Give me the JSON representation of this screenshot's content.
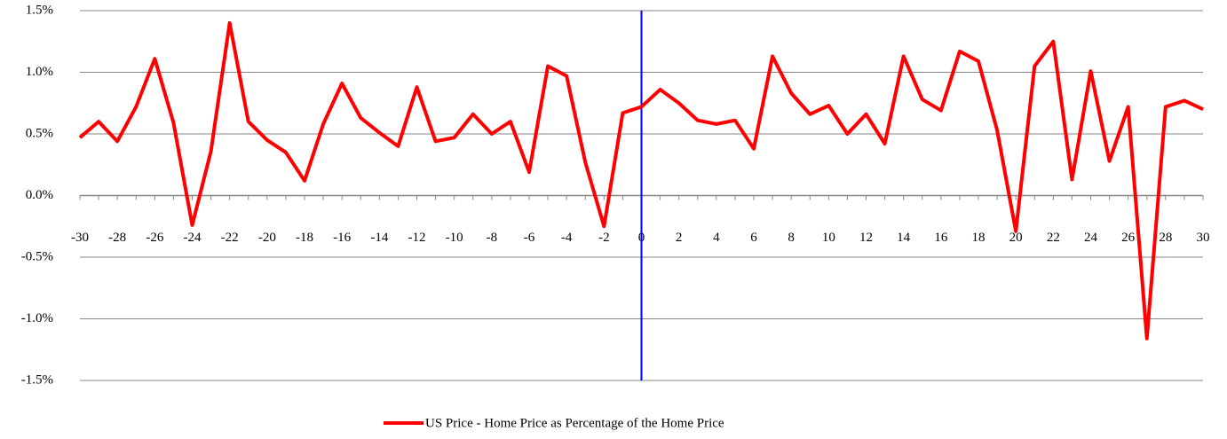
{
  "chart_data": {
    "type": "line",
    "x": [
      -30,
      -29,
      -28,
      -27,
      -26,
      -25,
      -24,
      -23,
      -22,
      -21,
      -20,
      -19,
      -18,
      -17,
      -16,
      -15,
      -14,
      -13,
      -12,
      -11,
      -10,
      -9,
      -8,
      -7,
      -6,
      -5,
      -4,
      -3,
      -2,
      -1,
      0,
      1,
      2,
      3,
      4,
      5,
      6,
      7,
      8,
      9,
      10,
      11,
      12,
      13,
      14,
      15,
      16,
      17,
      18,
      19,
      20,
      21,
      22,
      23,
      24,
      25,
      26,
      27,
      28,
      29,
      30
    ],
    "series": [
      {
        "name": "US Price - Home Price as Percentage of the Home Price",
        "color": "#ff0000",
        "values": [
          0.47,
          0.6,
          0.44,
          0.72,
          1.11,
          0.59,
          -0.24,
          0.36,
          1.4,
          0.6,
          0.45,
          0.35,
          0.12,
          0.58,
          0.91,
          0.63,
          0.51,
          0.4,
          0.88,
          0.44,
          0.47,
          0.66,
          0.5,
          0.6,
          0.19,
          1.05,
          0.97,
          0.27,
          -0.25,
          0.67,
          0.72,
          0.86,
          0.75,
          0.61,
          0.58,
          0.61,
          0.38,
          1.13,
          0.83,
          0.66,
          0.73,
          0.5,
          0.66,
          0.42,
          1.13,
          0.78,
          0.69,
          1.17,
          1.09,
          0.53,
          -0.29,
          1.05,
          1.25,
          0.13,
          1.01,
          0.28,
          0.72,
          -1.16,
          0.72,
          0.77,
          0.7
        ]
      }
    ],
    "xlim": [
      -30,
      30
    ],
    "xticks": [
      -30,
      -28,
      -26,
      -24,
      -22,
      -20,
      -18,
      -16,
      -14,
      -12,
      -10,
      -8,
      -6,
      -4,
      -2,
      0,
      2,
      4,
      6,
      8,
      10,
      12,
      14,
      16,
      18,
      20,
      22,
      24,
      26,
      28,
      30
    ],
    "ylim": [
      -1.5,
      1.5
    ],
    "yticks": [
      {
        "value": -1.5,
        "label": "-1.5%"
      },
      {
        "value": -1.0,
        "label": "-1.0%"
      },
      {
        "value": -0.5,
        "label": "-0.5%"
      },
      {
        "value": 0,
        "label": "0.0%"
      },
      {
        "value": 0.5,
        "label": "0.5%"
      },
      {
        "value": 1.0,
        "label": "1.0%"
      },
      {
        "value": 1.5,
        "label": "1.5%"
      }
    ],
    "grid": true,
    "legend": "bottom",
    "reference_line": {
      "x": 0,
      "color": "#0000ff"
    }
  }
}
